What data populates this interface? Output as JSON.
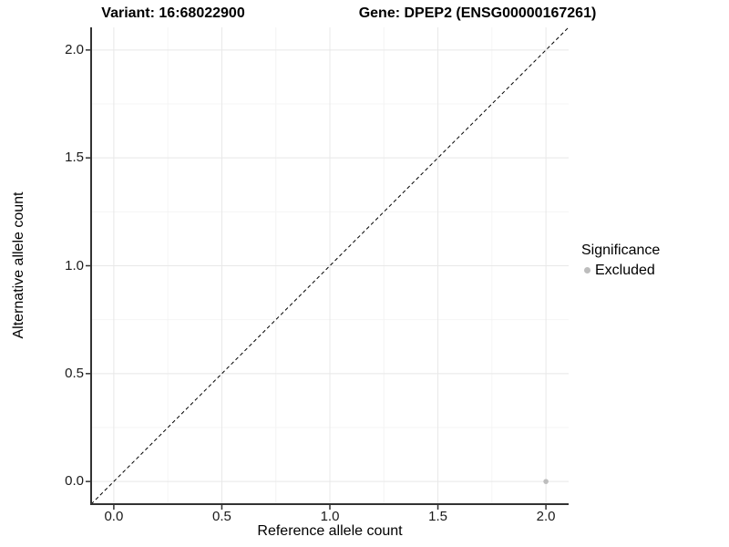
{
  "chart_data": {
    "type": "scatter",
    "titles": [
      "Variant: 16:68022900",
      "Gene: DPEP2 (ENSG00000167261)"
    ],
    "xlabel": "Reference allele count",
    "ylabel": "Alternative allele count",
    "xlim": [
      -0.105,
      2.105
    ],
    "ylim": [
      -0.105,
      2.105
    ],
    "xticks": {
      "values": [
        0,
        0.5,
        1,
        1.5,
        2
      ],
      "labels": [
        "0.0",
        "0.5",
        "1.0",
        "1.5",
        "2.0"
      ]
    },
    "yticks": {
      "values": [
        0,
        0.5,
        1,
        1.5,
        2
      ],
      "labels": [
        "0.0",
        "0.5",
        "1.0",
        "1.5",
        "2.0"
      ]
    },
    "minor_xticks": [
      0.25,
      0.75,
      1.25,
      1.75
    ],
    "minor_yticks": [
      0.25,
      0.75,
      1.25,
      1.75
    ],
    "grid": {
      "major": true,
      "minor": true
    },
    "reference_line": {
      "slope": 1,
      "intercept": 0,
      "style": "dashed",
      "color": "#000000"
    },
    "series": [
      {
        "name": "Excluded",
        "marker": "circle",
        "color": "#bdbdbd",
        "points": [
          {
            "x": 2.0,
            "y": 0.0
          }
        ]
      }
    ],
    "legend": {
      "title": "Significance",
      "position": "right",
      "entries": [
        {
          "label": "Excluded",
          "color": "#bdbdbd",
          "marker": "circle"
        }
      ]
    }
  },
  "colors": {
    "background": "#ffffff",
    "grid_major": "#e8e8e8",
    "grid_minor": "#f4f4f4",
    "axis_line": "#333333",
    "tick_mark": "#333333",
    "point": "#bdbdbd",
    "reference_line": "#000000"
  }
}
